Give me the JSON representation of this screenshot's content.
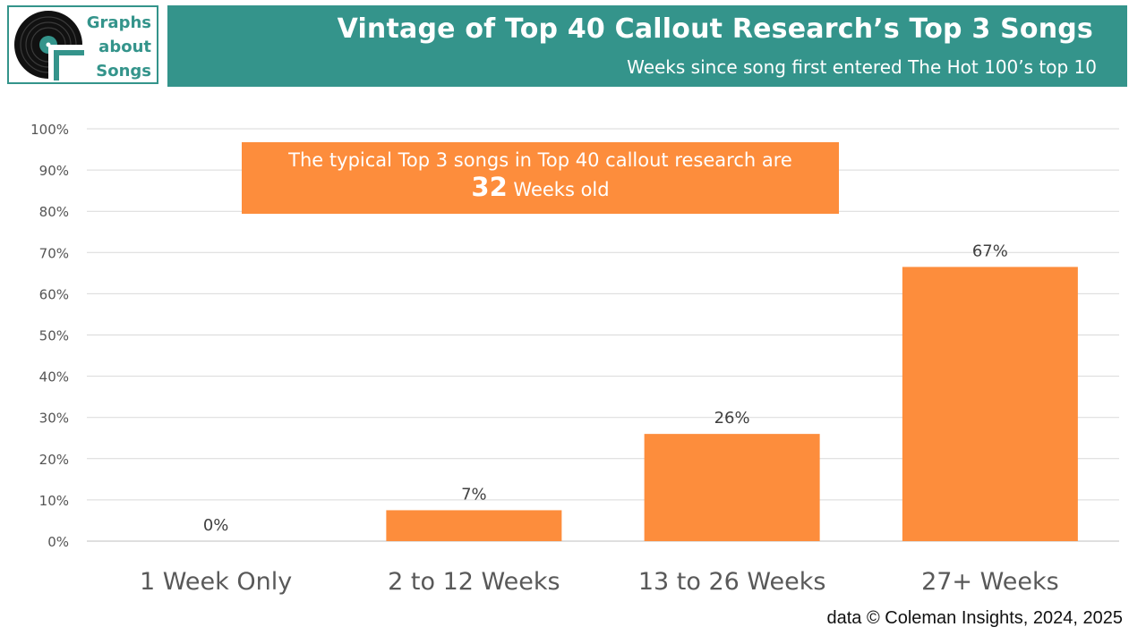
{
  "logo": {
    "lines": [
      "Graphs",
      "about",
      "Songs"
    ]
  },
  "header": {
    "title": "Vintage of Top 40 Callout Research’s Top 3 Songs",
    "subtitle": "Weeks since song first entered The Hot 100’s top 10"
  },
  "callout": {
    "line1": "The typical Top 3 songs in Top 40 callout research are",
    "number": "32",
    "suffix": " Weeks old"
  },
  "source": "data © Coleman Insights, 2024, 2025",
  "colors": {
    "teal": "#34948b",
    "bar": "#fd8d3c",
    "grid": "#d9d9d9"
  },
  "chart_data": {
    "type": "bar",
    "categories": [
      "1 Week Only",
      "2 to 12 Weeks",
      "13 to 26 Weeks",
      "27+ Weeks"
    ],
    "values": [
      0,
      7.5,
      26,
      66.5
    ],
    "value_labels": [
      "0%",
      "7%",
      "26%",
      "67%"
    ],
    "yticks": [
      "0%",
      "10%",
      "20%",
      "30%",
      "40%",
      "50%",
      "60%",
      "70%",
      "80%",
      "90%",
      "100%"
    ],
    "ylim": [
      0,
      100
    ],
    "grid": true,
    "legend": "none",
    "title": "",
    "xlabel": "",
    "ylabel": ""
  }
}
